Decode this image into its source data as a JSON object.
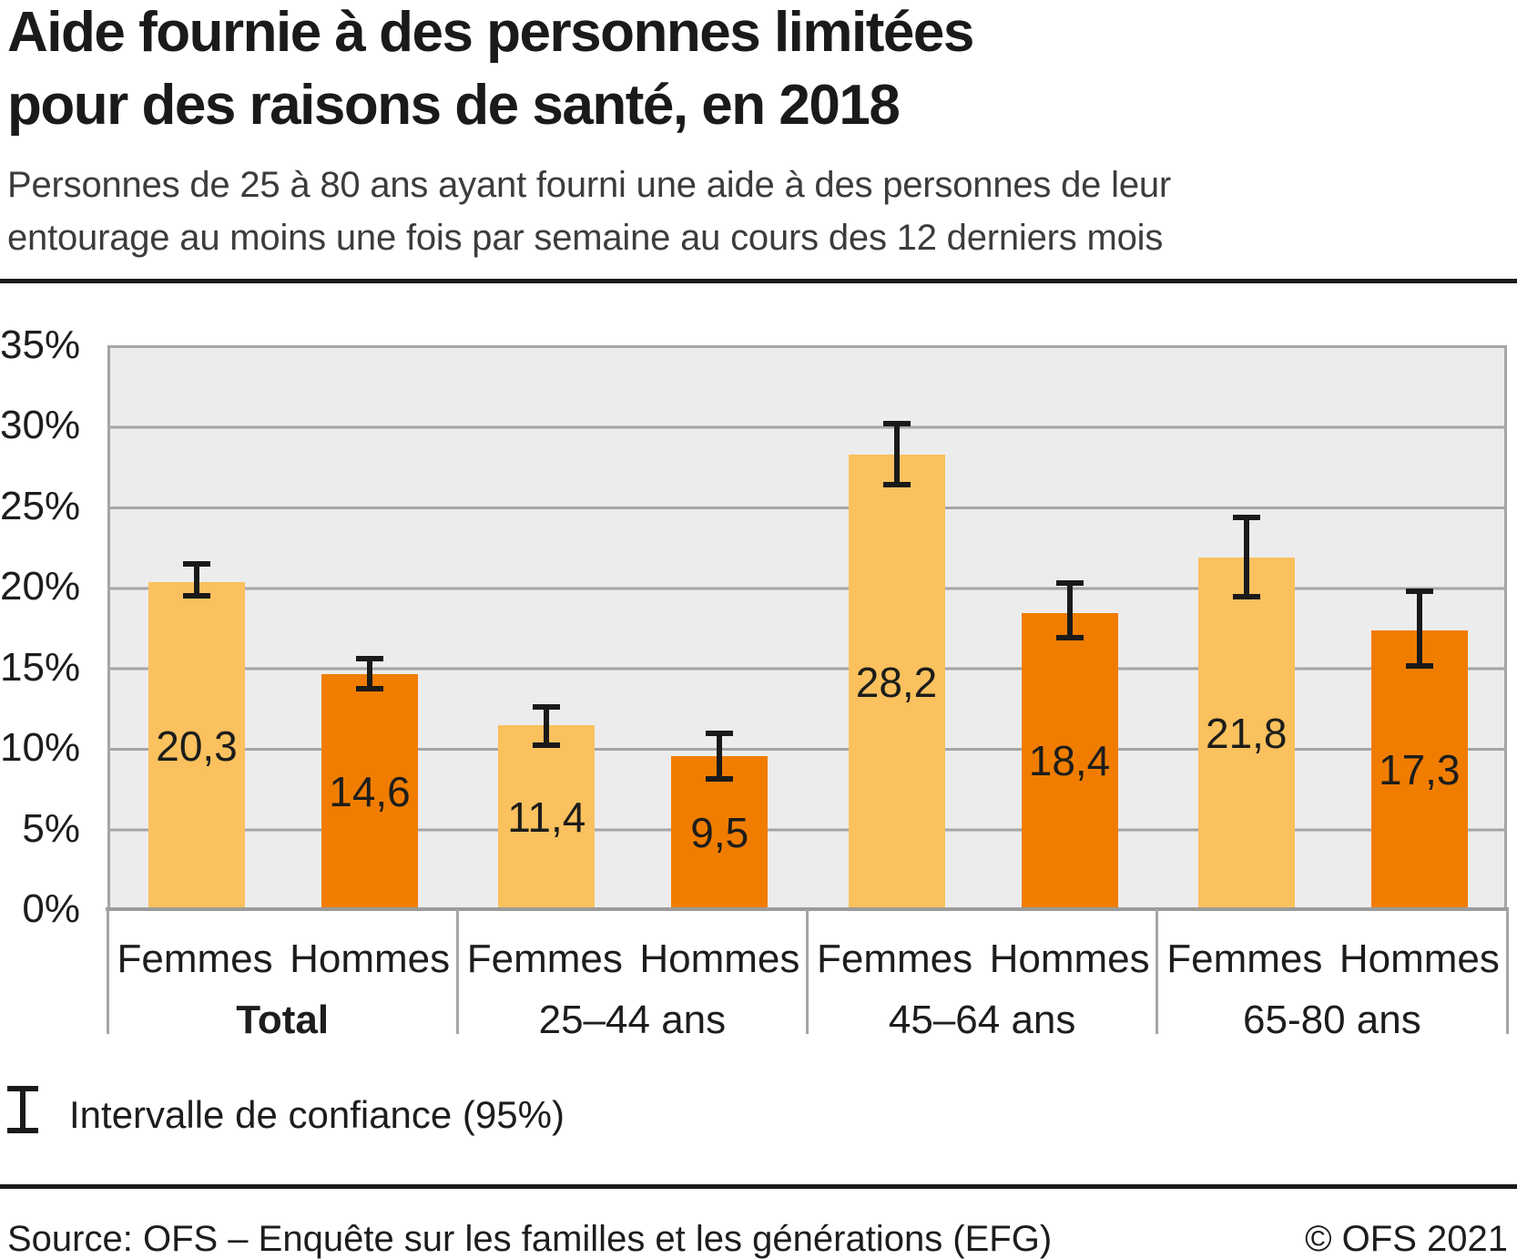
{
  "header": {
    "title_line1": "Aide fournie à des personnes limitées",
    "title_line2": "pour des raisons de santé, en 2018",
    "subtitle_line1": "Personnes de 25 à 80 ans ayant fourni une aide à des personnes de leur",
    "subtitle_line2": "entourage au moins une fois par semaine au cours des 12 derniers mois"
  },
  "chart_data": {
    "type": "bar",
    "title": "Aide fournie à des personnes limitées pour des raisons de santé, en 2018",
    "unit": "%",
    "ylim": [
      0,
      35
    ],
    "ytick_step": 5,
    "yticks": [
      "35%",
      "30%",
      "25%",
      "20%",
      "15%",
      "10%",
      "5%",
      "0%"
    ],
    "grid": true,
    "legend": {
      "symbol": "error-bar",
      "label": "Intervalle de confiance (95%)"
    },
    "series": [
      "Femmes",
      "Hommes"
    ],
    "colors": {
      "Femmes": "#FAC15E",
      "Hommes": "#F07D00"
    },
    "error_bar_color": "#1a1a1a",
    "groups": [
      {
        "label": "Total",
        "bold": true,
        "bars": [
          {
            "series": "Femmes",
            "value": 20.3,
            "label": "20,3",
            "ci": [
              19.3,
              21.6
            ]
          },
          {
            "series": "Hommes",
            "value": 14.6,
            "label": "14,6",
            "ci": [
              13.5,
              15.7
            ]
          }
        ]
      },
      {
        "label": "25–44 ans",
        "bold": false,
        "bars": [
          {
            "series": "Femmes",
            "value": 11.4,
            "label": "11,4",
            "ci": [
              10.0,
              12.7
            ]
          },
          {
            "series": "Hommes",
            "value": 9.5,
            "label": "9,5",
            "ci": [
              7.9,
              11.1
            ]
          }
        ]
      },
      {
        "label": "45–64 ans",
        "bold": false,
        "bars": [
          {
            "series": "Femmes",
            "value": 28.2,
            "label": "28,2",
            "ci": [
              26.2,
              30.3
            ]
          },
          {
            "series": "Hommes",
            "value": 18.4,
            "label": "18,4",
            "ci": [
              16.7,
              20.4
            ]
          }
        ]
      },
      {
        "label": "65-80 ans",
        "bold": false,
        "bars": [
          {
            "series": "Femmes",
            "value": 21.8,
            "label": "21,8",
            "ci": [
              19.2,
              24.5
            ]
          },
          {
            "series": "Hommes",
            "value": 17.3,
            "label": "17,3",
            "ci": [
              14.9,
              19.9
            ]
          }
        ]
      }
    ]
  },
  "footer": {
    "source": "Source: OFS – Enquête sur les familles et les générations (EFG)",
    "copyright": "© OFS 2021"
  }
}
